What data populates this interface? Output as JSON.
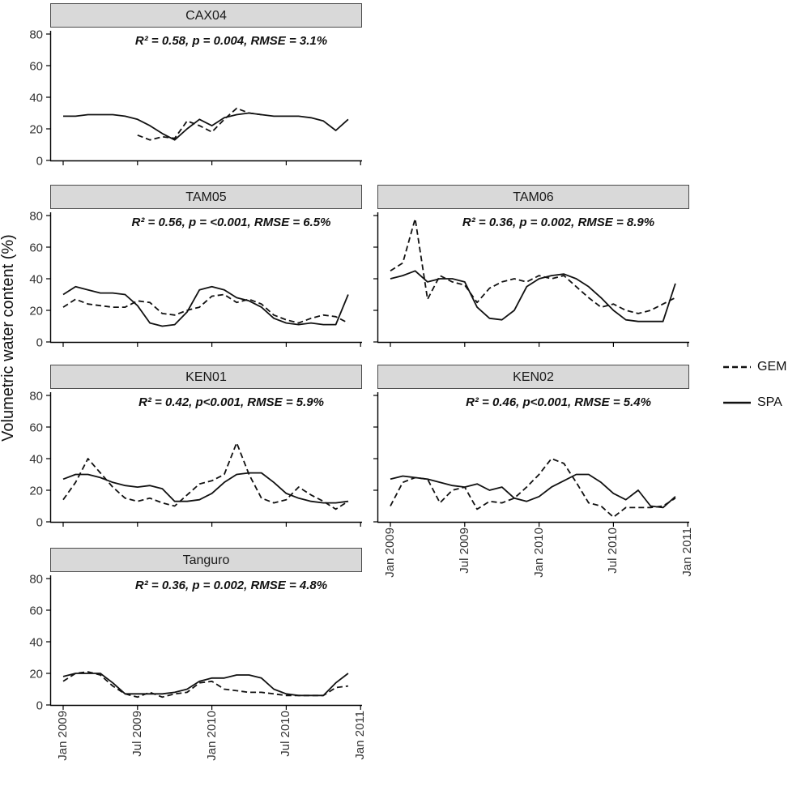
{
  "figure": {
    "y_axis_label": "Volumetric water content (%)",
    "legend": [
      {
        "name": "GEM",
        "style": "dashed"
      },
      {
        "name": "SPA",
        "style": "solid"
      }
    ],
    "colors": {
      "line": "#111111",
      "panel_header_bg": "#d9d9d9",
      "panel_header_border": "#4a4a4a",
      "axis": "#000000",
      "tick_label": "#333333"
    }
  },
  "chart_data": {
    "type": "line",
    "x_start": "Jan 2009",
    "x_step": "1 month",
    "n_points": 24,
    "x_tick_labels": [
      "Jan 2009",
      "Jul 2009",
      "Jan 2010",
      "Jul 2010",
      "Jan 2011"
    ],
    "x_tick_positions": [
      0,
      6,
      12,
      18,
      24
    ],
    "y_ticks": [
      0,
      20,
      40,
      60,
      80
    ],
    "ylim": [
      0,
      84
    ],
    "grid": false,
    "legend_position": "right",
    "panels": [
      {
        "title": "CAX04",
        "stats": "R² = 0.58, p = 0.004, RMSE = 3.1%",
        "row": 0,
        "col": 0,
        "show_y_labels": true,
        "show_x_labels": false,
        "series": [
          {
            "name": "GEM",
            "dash": true,
            "values": [
              null,
              null,
              null,
              null,
              null,
              null,
              16,
              13,
              15,
              14,
              25,
              22,
              18,
              26,
              33,
              30,
              29,
              null,
              null,
              null,
              null,
              null,
              null,
              null
            ]
          },
          {
            "name": "SPA",
            "dash": false,
            "values": [
              28,
              28,
              29,
              29,
              29,
              28,
              26,
              22,
              17,
              13,
              20,
              26,
              22,
              27,
              29,
              30,
              29,
              28,
              28,
              28,
              27,
              25,
              19,
              26
            ]
          }
        ]
      },
      {
        "title": "TAM05",
        "stats": "R² = 0.56, p = <0.001, RMSE = 6.5%",
        "row": 1,
        "col": 0,
        "show_y_labels": true,
        "show_x_labels": false,
        "series": [
          {
            "name": "GEM",
            "dash": true,
            "values": [
              22,
              27,
              24,
              23,
              22,
              22,
              26,
              25,
              18,
              17,
              20,
              22,
              29,
              30,
              25,
              27,
              24,
              17,
              14,
              12,
              15,
              17,
              16,
              12
            ]
          },
          {
            "name": "SPA",
            "dash": false,
            "values": [
              30,
              35,
              33,
              31,
              31,
              30,
              23,
              12,
              10,
              11,
              19,
              33,
              35,
              33,
              28,
              26,
              22,
              15,
              12,
              11,
              12,
              11,
              11,
              30
            ]
          }
        ]
      },
      {
        "title": "TAM06",
        "stats": "R² = 0.36, p = 0.002, RMSE = 8.9%",
        "row": 1,
        "col": 1,
        "show_y_labels": false,
        "show_x_labels": false,
        "series": [
          {
            "name": "GEM",
            "dash": true,
            "values": [
              45,
              50,
              78,
              27,
              42,
              38,
              36,
              25,
              34,
              38,
              40,
              38,
              42,
              40,
              42,
              35,
              28,
              22,
              24,
              20,
              18,
              20,
              24,
              28
            ]
          },
          {
            "name": "SPA",
            "dash": false,
            "values": [
              40,
              42,
              45,
              38,
              40,
              40,
              38,
              22,
              15,
              14,
              20,
              35,
              40,
              42,
              43,
              40,
              35,
              28,
              20,
              14,
              13,
              13,
              13,
              37
            ]
          }
        ]
      },
      {
        "title": "KEN01",
        "stats": "R² = 0.42, p<0.001, RMSE = 5.9%",
        "row": 2,
        "col": 0,
        "show_y_labels": true,
        "show_x_labels": false,
        "series": [
          {
            "name": "GEM",
            "dash": true,
            "values": [
              14,
              25,
              40,
              31,
              22,
              15,
              13,
              15,
              12,
              10,
              17,
              24,
              26,
              30,
              50,
              30,
              15,
              12,
              14,
              22,
              17,
              13,
              8,
              13
            ]
          },
          {
            "name": "SPA",
            "dash": false,
            "values": [
              27,
              30,
              30,
              28,
              25,
              23,
              22,
              23,
              21,
              13,
              13,
              14,
              18,
              25,
              30,
              31,
              31,
              25,
              18,
              15,
              13,
              12,
              12,
              13
            ]
          }
        ]
      },
      {
        "title": "KEN02",
        "stats": "R² = 0.46, p<0.001, RMSE = 5.4%",
        "row": 2,
        "col": 1,
        "show_y_labels": false,
        "show_x_labels": true,
        "series": [
          {
            "name": "GEM",
            "dash": true,
            "values": [
              10,
              25,
              28,
              27,
              12,
              20,
              22,
              8,
              13,
              12,
              15,
              22,
              30,
              40,
              37,
              25,
              12,
              10,
              3,
              9,
              9,
              9,
              10,
              15
            ]
          },
          {
            "name": "SPA",
            "dash": false,
            "values": [
              27,
              29,
              28,
              27,
              25,
              23,
              22,
              24,
              20,
              22,
              15,
              13,
              16,
              22,
              26,
              30,
              30,
              25,
              18,
              14,
              20,
              10,
              9,
              16
            ]
          }
        ]
      },
      {
        "title": "Tanguro",
        "stats": "R² = 0.36, p = 0.002, RMSE = 4.8%",
        "row": 3,
        "col": 0,
        "show_y_labels": true,
        "show_x_labels": true,
        "series": [
          {
            "name": "GEM",
            "dash": true,
            "values": [
              15,
              20,
              21,
              19,
              12,
              7,
              5,
              8,
              5,
              7,
              8,
              14,
              15,
              10,
              9,
              8,
              8,
              7,
              6,
              6,
              6,
              6,
              11,
              12
            ]
          },
          {
            "name": "SPA",
            "dash": false,
            "values": [
              18,
              20,
              20,
              20,
              14,
              7,
              7,
              7,
              7,
              8,
              10,
              15,
              17,
              17,
              19,
              19,
              17,
              10,
              7,
              6,
              6,
              6,
              14,
              20
            ]
          }
        ]
      }
    ]
  }
}
